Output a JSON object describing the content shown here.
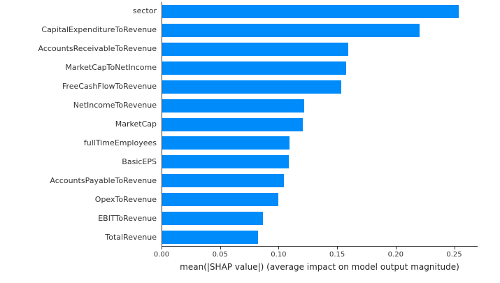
{
  "chart_data": {
    "type": "bar",
    "orientation": "horizontal",
    "title": "",
    "xlabel": "mean(|SHAP value|) (average impact on model output magnitude)",
    "ylabel": "",
    "categories": [
      "sector",
      "CapitalExpenditureToRevenue",
      "AccountsReceivableToRevenue",
      "MarketCapToNetIncome",
      "FreeCashFlowToRevenue",
      "NetIncomeToRevenue",
      "MarketCap",
      "fullTimeEmployees",
      "BasicEPS",
      "AccountsPayableToRevenue",
      "OpexToRevenue",
      "EBITToRevenue",
      "TotalRevenue"
    ],
    "values": [
      0.253,
      0.22,
      0.159,
      0.157,
      0.153,
      0.121,
      0.12,
      0.109,
      0.108,
      0.104,
      0.099,
      0.086,
      0.082
    ],
    "xlim": [
      0,
      0.27
    ],
    "x_ticks": [
      {
        "value": 0.0,
        "label": "0.00"
      },
      {
        "value": 0.05,
        "label": "0.05"
      },
      {
        "value": 0.1,
        "label": "0.10"
      },
      {
        "value": 0.15,
        "label": "0.15"
      },
      {
        "value": 0.2,
        "label": "0.20"
      },
      {
        "value": 0.25,
        "label": "0.25"
      }
    ],
    "bar_color": "#008bfb",
    "background_color": "#ffffff",
    "grid": false,
    "legend": "none"
  }
}
